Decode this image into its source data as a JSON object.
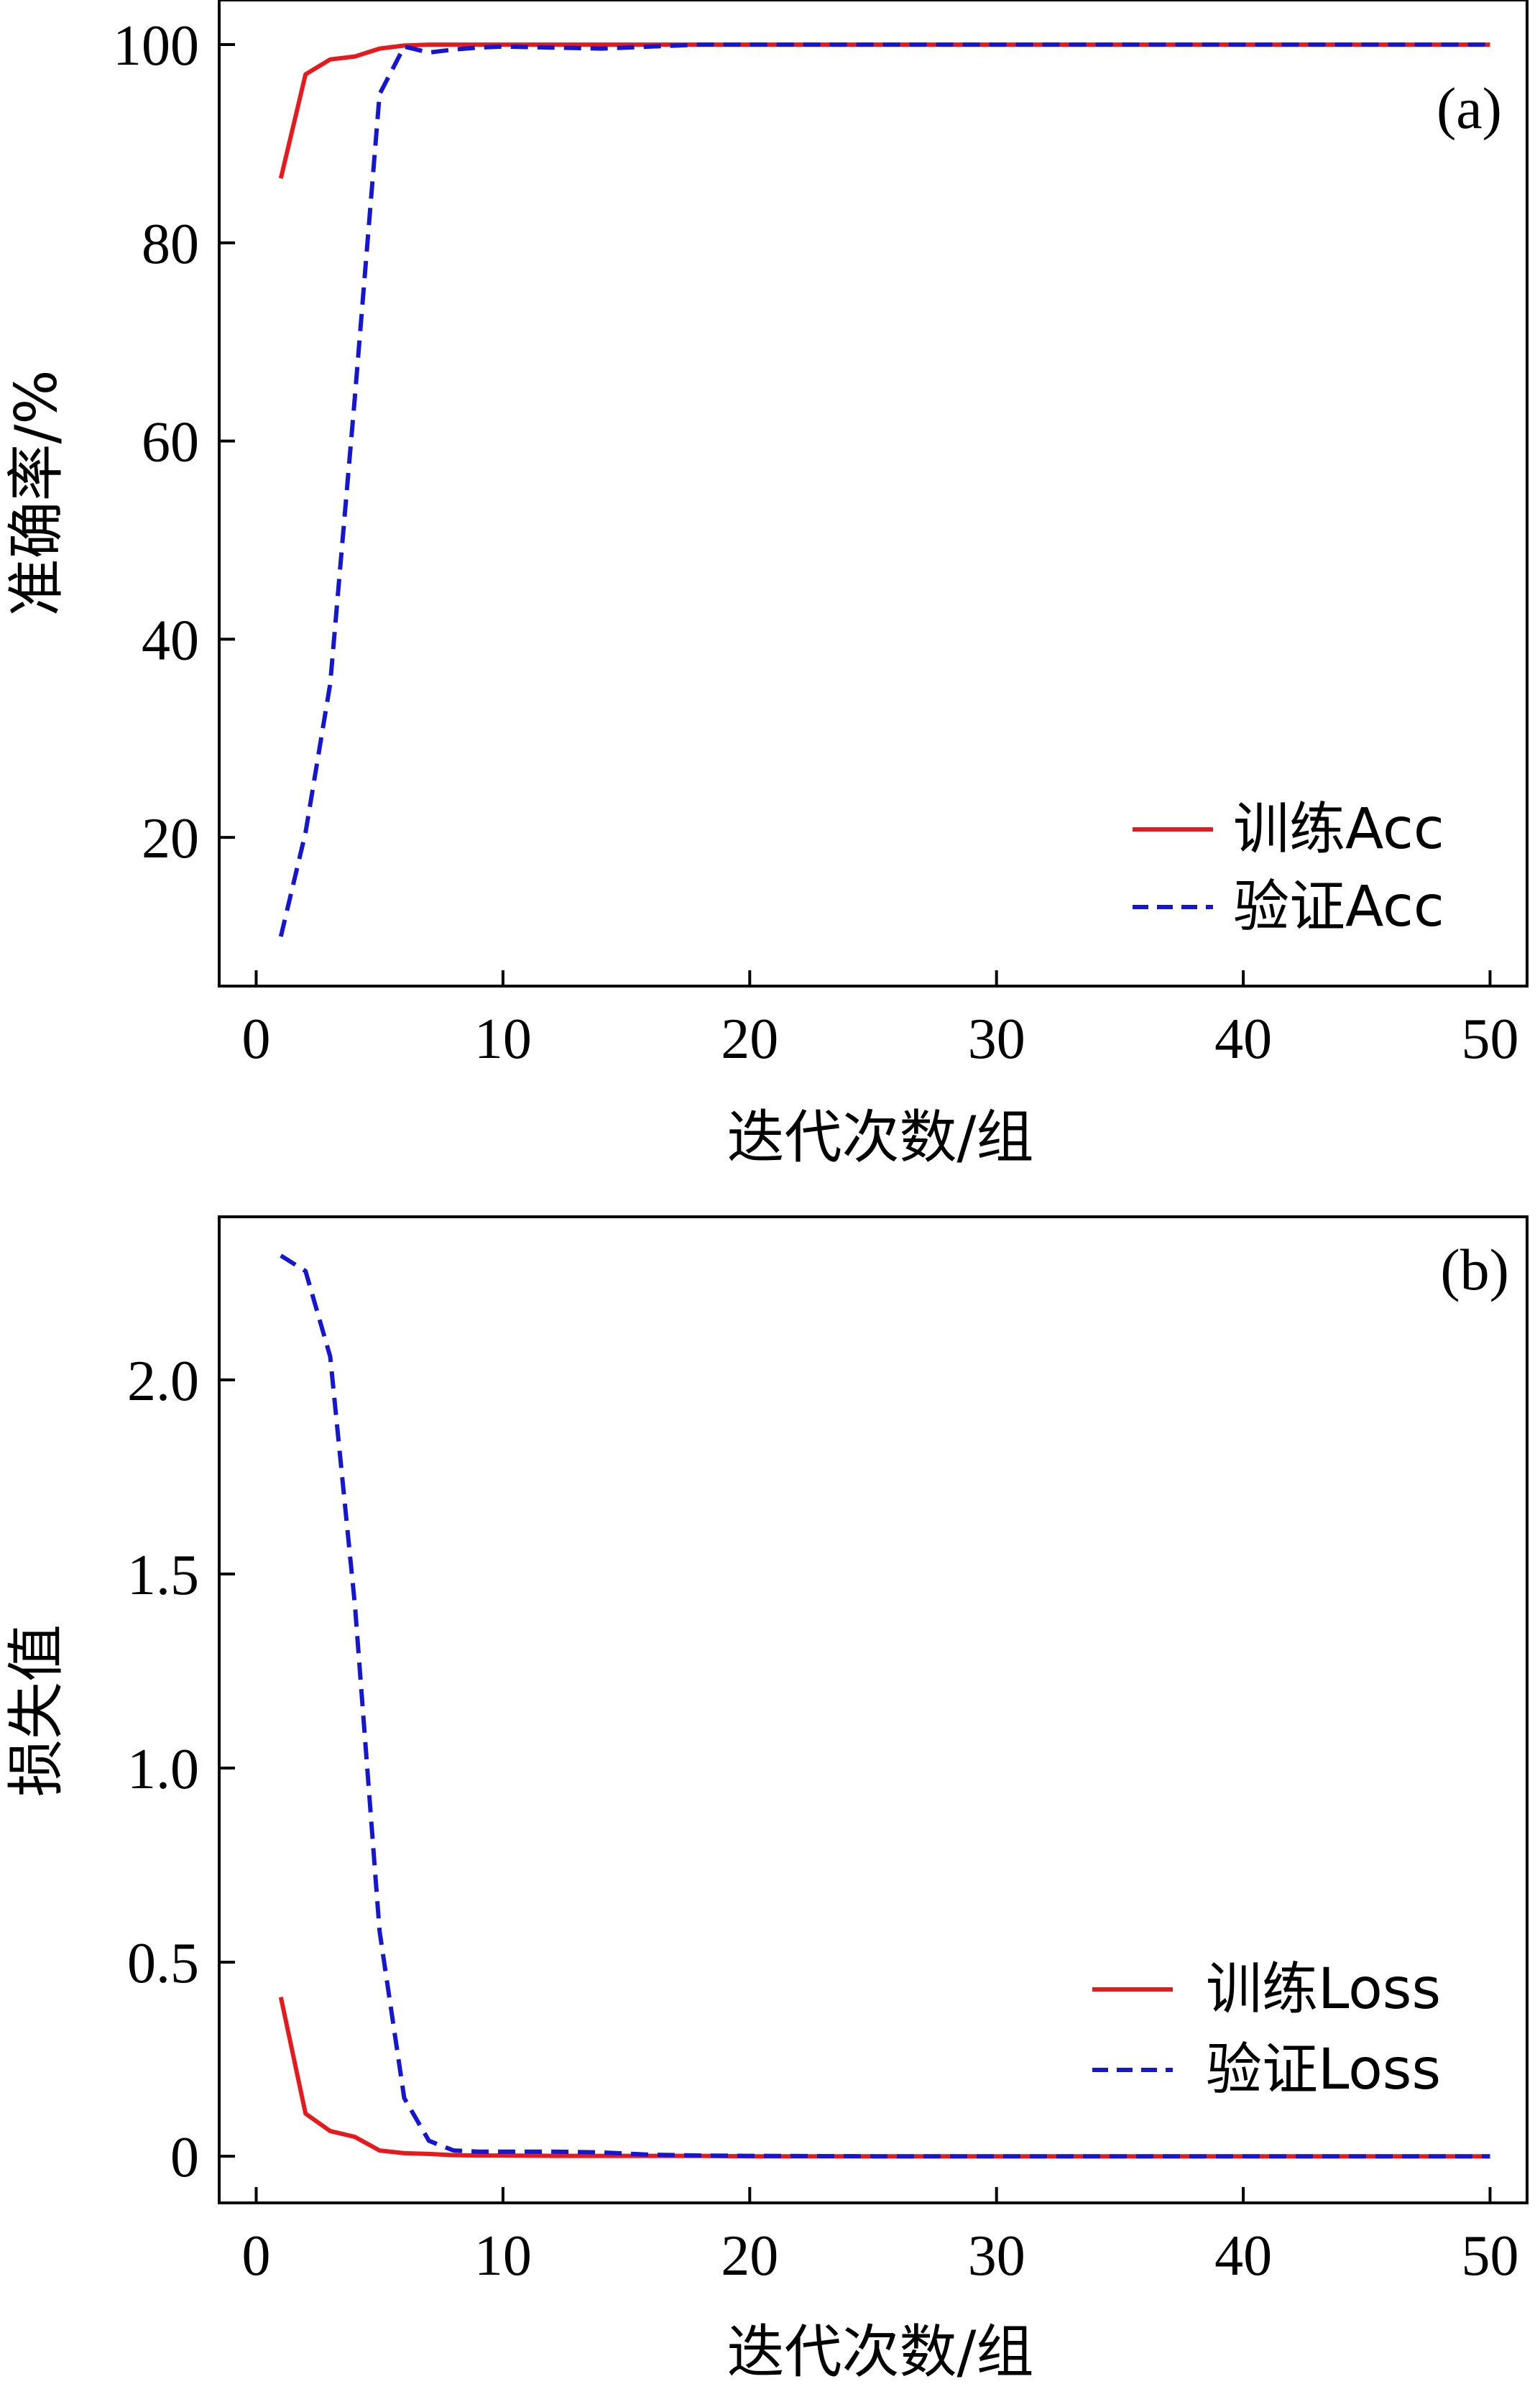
{
  "colors": {
    "train": "#e8191c",
    "val": "#1515d4",
    "axis": "#000000"
  },
  "chart_data": [
    {
      "type": "line",
      "panel_label": "(a)",
      "xlabel": "迭代次数/组",
      "ylabel": "准确率/%",
      "xlim": [
        -1.5,
        51.5
      ],
      "ylim": [
        5,
        104.5
      ],
      "xticks": [
        0,
        10,
        20,
        30,
        40,
        50
      ],
      "yticks": [
        20,
        40,
        60,
        80,
        100
      ],
      "ytick_labels": [
        "20",
        "40",
        "60",
        "80",
        "100"
      ],
      "legend_position": "lower-right",
      "series": [
        {
          "name": "训练Acc",
          "style": "solid",
          "x": [
            1,
            2,
            3,
            4,
            5,
            6,
            7,
            8,
            9,
            10,
            12,
            14,
            16,
            18,
            20,
            25,
            30,
            35,
            40,
            45,
            50
          ],
          "y": [
            86.5,
            97.0,
            98.5,
            98.8,
            99.6,
            99.9,
            100,
            100,
            100,
            100,
            100,
            100,
            100,
            100,
            100,
            100,
            100,
            100,
            100,
            100,
            100
          ]
        },
        {
          "name": "验证Acc",
          "style": "dashed",
          "x": [
            1,
            2,
            3,
            4,
            5,
            6,
            7,
            8,
            9,
            10,
            12,
            14,
            16,
            18,
            20,
            25,
            30,
            35,
            40,
            45,
            50
          ],
          "y": [
            10.0,
            20.5,
            35.5,
            64.5,
            95.0,
            99.8,
            99.2,
            99.5,
            99.7,
            99.8,
            99.7,
            99.6,
            99.8,
            100,
            100,
            100,
            100,
            100,
            100,
            100,
            100
          ]
        }
      ]
    },
    {
      "type": "line",
      "panel_label": "(b)",
      "xlabel": "迭代次数/组",
      "ylabel": "损失值",
      "xlim": [
        -1.5,
        51.5
      ],
      "ylim": [
        -0.12,
        2.42
      ],
      "xticks": [
        0,
        10,
        20,
        30,
        40,
        50
      ],
      "yticks": [
        0,
        0.5,
        1.0,
        1.5,
        2.0
      ],
      "ytick_labels": [
        "0",
        "0.5",
        "1.0",
        "1.5",
        "2.0"
      ],
      "legend_position": "lower-right",
      "series": [
        {
          "name": "训练Loss",
          "style": "solid",
          "x": [
            1,
            2,
            3,
            4,
            5,
            6,
            7,
            8,
            9,
            10,
            12,
            14,
            16,
            18,
            20,
            25,
            30,
            35,
            40,
            45,
            50
          ],
          "y": [
            0.41,
            0.11,
            0.065,
            0.05,
            0.015,
            0.008,
            0.006,
            0.003,
            0.002,
            0.002,
            0.001,
            0.001,
            0.001,
            0.001,
            0,
            0,
            0,
            0,
            0,
            0,
            0
          ]
        },
        {
          "name": "验证Loss",
          "style": "dashed",
          "x": [
            1,
            2,
            3,
            4,
            5,
            6,
            7,
            8,
            9,
            10,
            12,
            14,
            16,
            18,
            20,
            25,
            30,
            35,
            40,
            45,
            50
          ],
          "y": [
            2.32,
            2.28,
            2.06,
            1.42,
            0.58,
            0.15,
            0.04,
            0.015,
            0.012,
            0.012,
            0.012,
            0.01,
            0.004,
            0.002,
            0.001,
            0,
            0,
            0,
            0,
            0,
            0
          ]
        }
      ]
    }
  ]
}
